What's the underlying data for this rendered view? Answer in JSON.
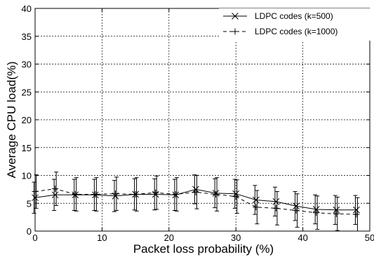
{
  "chart_data": {
    "type": "line",
    "xlabel": "Packet loss probability (%)",
    "ylabel": "Average CPU load(%)",
    "xlim": [
      0,
      50
    ],
    "ylim": [
      0,
      40
    ],
    "x_ticks": [
      0,
      10,
      20,
      30,
      40,
      50
    ],
    "y_ticks": [
      0,
      5,
      10,
      15,
      20,
      25,
      30,
      35,
      40
    ],
    "grid": true,
    "legend_position": "top-right",
    "series": [
      {
        "name": "LDPC codes (k=500)",
        "line_style": "solid",
        "marker": "x",
        "x": [
          0,
          3,
          6,
          9,
          12,
          15,
          18,
          21,
          24,
          27,
          30,
          33,
          36,
          39,
          42,
          45,
          48
        ],
        "y": [
          6.0,
          6.5,
          6.5,
          6.5,
          6.3,
          6.6,
          6.6,
          6.5,
          7.5,
          6.8,
          6.7,
          5.6,
          5.3,
          4.5,
          3.9,
          3.8,
          3.8
        ],
        "err": [
          2.8,
          2.8,
          2.8,
          2.8,
          2.8,
          2.8,
          2.8,
          2.8,
          2.6,
          2.6,
          2.6,
          2.6,
          2.6,
          2.6,
          2.6,
          2.6,
          2.6
        ]
      },
      {
        "name": "LDPC codes (k=1000)",
        "line_style": "dashed",
        "marker": "+",
        "x": [
          0,
          3,
          6,
          9,
          12,
          15,
          18,
          21,
          24,
          27,
          30,
          33,
          36,
          39,
          42,
          45,
          48
        ],
        "y": [
          7.1,
          7.6,
          6.6,
          6.6,
          6.7,
          6.6,
          6.9,
          6.6,
          7.0,
          6.6,
          6.2,
          4.3,
          4.1,
          3.7,
          3.3,
          3.1,
          3.0
        ],
        "err": [
          3.0,
          3.0,
          3.0,
          3.0,
          3.0,
          3.0,
          3.0,
          3.0,
          3.0,
          3.0,
          3.0,
          3.0,
          3.0,
          3.0,
          3.0,
          3.0,
          3.0
        ]
      }
    ]
  }
}
